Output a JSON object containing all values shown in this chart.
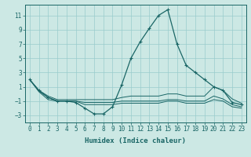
{
  "xlabel": "Humidex (Indice chaleur)",
  "ylabel": "",
  "background_color": "#cce8e4",
  "grid_color": "#99cccc",
  "line_color": "#1a6666",
  "xlim": [
    -0.5,
    23.5
  ],
  "ylim": [
    -4,
    12.5
  ],
  "yticks": [
    -3,
    -1,
    1,
    3,
    5,
    7,
    9,
    11
  ],
  "xticks": [
    0,
    1,
    2,
    3,
    4,
    5,
    6,
    7,
    8,
    9,
    10,
    11,
    12,
    13,
    14,
    15,
    16,
    17,
    18,
    19,
    20,
    21,
    22,
    23
  ],
  "series": [
    {
      "x": [
        0,
        1,
        2,
        3,
        4,
        5,
        6,
        7,
        8,
        9,
        10,
        11,
        12,
        13,
        14,
        15,
        16,
        17,
        18,
        19,
        20,
        21,
        22,
        23
      ],
      "y": [
        2.0,
        0.5,
        -0.5,
        -1.0,
        -1.0,
        -1.2,
        -2.0,
        -2.8,
        -2.8,
        -1.8,
        1.3,
        5.0,
        7.3,
        9.2,
        11.0,
        11.8,
        7.0,
        4.0,
        3.0,
        2.0,
        1.0,
        0.5,
        -1.2,
        -1.5
      ],
      "marker": true
    },
    {
      "x": [
        0,
        1,
        2,
        3,
        4,
        5,
        6,
        7,
        8,
        9,
        10,
        11,
        12,
        13,
        14,
        15,
        16,
        17,
        18,
        19,
        20,
        21,
        22,
        23
      ],
      "y": [
        2.0,
        0.5,
        -0.3,
        -0.8,
        -0.8,
        -0.8,
        -0.8,
        -0.8,
        -0.8,
        -0.8,
        -0.5,
        -0.3,
        -0.3,
        -0.3,
        -0.3,
        0.0,
        0.0,
        -0.3,
        -0.3,
        -0.3,
        1.0,
        0.5,
        -0.7,
        -1.3
      ],
      "marker": false
    },
    {
      "x": [
        0,
        1,
        2,
        3,
        4,
        5,
        6,
        7,
        8,
        9,
        10,
        11,
        12,
        13,
        14,
        15,
        16,
        17,
        18,
        19,
        20,
        21,
        22,
        23
      ],
      "y": [
        2.0,
        0.4,
        -0.5,
        -1.0,
        -1.0,
        -1.0,
        -1.2,
        -1.2,
        -1.2,
        -1.2,
        -1.0,
        -1.0,
        -1.0,
        -1.0,
        -1.0,
        -0.8,
        -0.8,
        -1.0,
        -1.0,
        -1.0,
        -0.3,
        -0.7,
        -1.5,
        -1.8
      ],
      "marker": false
    },
    {
      "x": [
        0,
        1,
        2,
        3,
        4,
        5,
        6,
        7,
        8,
        9,
        10,
        11,
        12,
        13,
        14,
        15,
        16,
        17,
        18,
        19,
        20,
        21,
        22,
        23
      ],
      "y": [
        2.0,
        0.3,
        -0.8,
        -1.0,
        -1.0,
        -1.0,
        -1.5,
        -1.5,
        -1.5,
        -1.5,
        -1.3,
        -1.3,
        -1.3,
        -1.3,
        -1.3,
        -1.0,
        -1.0,
        -1.3,
        -1.3,
        -1.3,
        -0.8,
        -1.0,
        -1.8,
        -2.0
      ],
      "marker": false
    }
  ],
  "xlabel_fontsize": 6.5,
  "tick_fontsize": 5.5
}
